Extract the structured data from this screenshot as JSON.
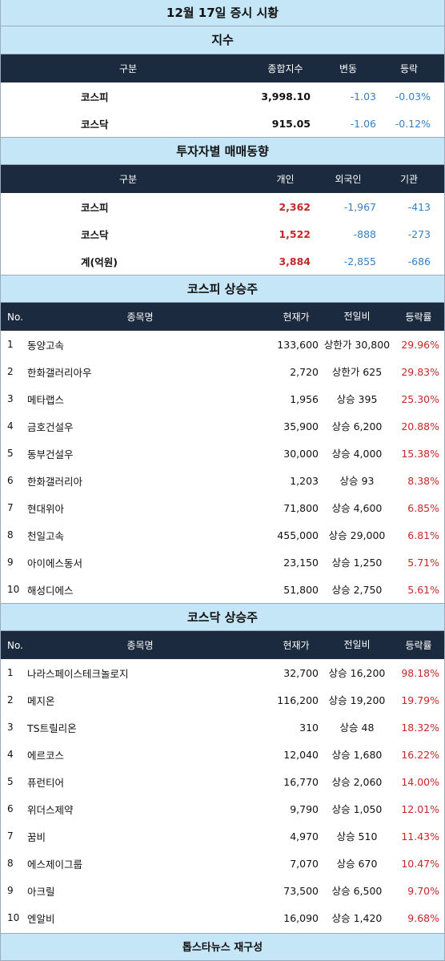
{
  "title": "12월 17일 증시 시황",
  "index_section": {
    "heading": "지수",
    "headers": [
      "구분",
      "종합지수",
      "변동",
      "등락"
    ],
    "rows": [
      {
        "name": "코스피",
        "value": "3,998.10",
        "change": "-1.03",
        "rate": "-0.03%"
      },
      {
        "name": "코스닥",
        "value": "915.05",
        "change": "-1.06",
        "rate": "-0.12%"
      }
    ]
  },
  "investor_section": {
    "heading": "투자자별 매매동향",
    "headers": [
      "구분",
      "개인",
      "외국인",
      "기관"
    ],
    "rows": [
      {
        "name": "코스피",
        "individual": "2,362",
        "foreign": "-1,967",
        "institution": "-413"
      },
      {
        "name": "코스닥",
        "individual": "1,522",
        "foreign": "-888",
        "institution": "-273"
      },
      {
        "name": "계(억원)",
        "individual": "3,884",
        "foreign": "-2,855",
        "institution": "-686"
      }
    ]
  },
  "kospi_section": {
    "heading": "코스피 상승주",
    "headers": [
      "No.",
      "종목명",
      "현재가",
      "전일비",
      "등락률"
    ],
    "rows": [
      {
        "no": "1",
        "name": "동양고속",
        "price": "133,600",
        "change": "상한가 30,800",
        "rate": "29.96%"
      },
      {
        "no": "2",
        "name": "한화갤러리아우",
        "price": "2,720",
        "change": "상한가 625",
        "rate": "29.83%"
      },
      {
        "no": "3",
        "name": "메타랩스",
        "price": "1,956",
        "change": "상승 395",
        "rate": "25.30%"
      },
      {
        "no": "4",
        "name": "금호건설우",
        "price": "35,900",
        "change": "상승 6,200",
        "rate": "20.88%"
      },
      {
        "no": "5",
        "name": "동부건설우",
        "price": "30,000",
        "change": "상승 4,000",
        "rate": "15.38%"
      },
      {
        "no": "6",
        "name": "한화갤러리아",
        "price": "1,203",
        "change": "상승 93",
        "rate": "8.38%"
      },
      {
        "no": "7",
        "name": "현대위아",
        "price": "71,800",
        "change": "상승 4,600",
        "rate": "6.85%"
      },
      {
        "no": "8",
        "name": "천일고속",
        "price": "455,000",
        "change": "상승 29,000",
        "rate": "6.81%"
      },
      {
        "no": "9",
        "name": "아이에스동서",
        "price": "23,150",
        "change": "상승 1,250",
        "rate": "5.71%"
      },
      {
        "no": "10",
        "name": "해성디에스",
        "price": "51,800",
        "change": "상승 2,750",
        "rate": "5.61%"
      }
    ]
  },
  "kosdaq_section": {
    "heading": "코스닥 상승주",
    "headers": [
      "No.",
      "종목명",
      "현재가",
      "전일비",
      "등락률"
    ],
    "rows": [
      {
        "no": "1",
        "name": "나라스페이스테크놀로지",
        "price": "32,700",
        "change": "상승 16,200",
        "rate": "98.18%"
      },
      {
        "no": "2",
        "name": "메지온",
        "price": "116,200",
        "change": "상승 19,200",
        "rate": "19.79%"
      },
      {
        "no": "3",
        "name": "TS트릴리온",
        "price": "310",
        "change": "상승 48",
        "rate": "18.32%"
      },
      {
        "no": "4",
        "name": "에르코스",
        "price": "12,040",
        "change": "상승 1,680",
        "rate": "16.22%"
      },
      {
        "no": "5",
        "name": "퓨런티어",
        "price": "16,770",
        "change": "상승 2,060",
        "rate": "14.00%"
      },
      {
        "no": "6",
        "name": "위더스제약",
        "price": "9,790",
        "change": "상승 1,050",
        "rate": "12.01%"
      },
      {
        "no": "7",
        "name": "꿈비",
        "price": "4,970",
        "change": "상승 510",
        "rate": "11.43%"
      },
      {
        "no": "8",
        "name": "에스제이그룹",
        "price": "7,070",
        "change": "상승 670",
        "rate": "10.47%"
      },
      {
        "no": "9",
        "name": "아크릴",
        "price": "73,500",
        "change": "상승 6,500",
        "rate": "9.70%"
      },
      {
        "no": "10",
        "name": "엔알비",
        "price": "16,090",
        "change": "상승 1,420",
        "rate": "9.68%"
      }
    ]
  },
  "footer": "톱스타뉴스 재구성"
}
